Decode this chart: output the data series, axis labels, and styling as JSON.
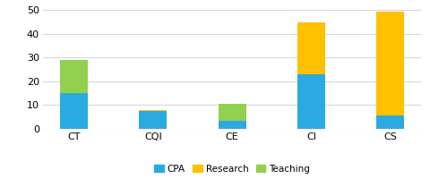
{
  "categories": [
    "CT",
    "CQI",
    "CE",
    "CI",
    "CS"
  ],
  "cpa": [
    15,
    7.5,
    3.5,
    23,
    5.5
  ],
  "research": [
    0,
    0.5,
    0,
    22,
    44
  ],
  "teaching": [
    14,
    0,
    7,
    0,
    0
  ],
  "cpa_color": "#29ABE2",
  "research_color": "#FFC000",
  "teaching_color": "#92D050",
  "ylim": [
    0,
    52
  ],
  "yticks": [
    0,
    10,
    20,
    30,
    40,
    50
  ],
  "background_color": "#ffffff",
  "grid_color": "#d9d9d9",
  "legend_labels": [
    "CPA",
    "Research",
    "Teaching"
  ],
  "bar_width": 0.35,
  "figsize": [
    4.8,
    2.0
  ],
  "dpi": 100
}
